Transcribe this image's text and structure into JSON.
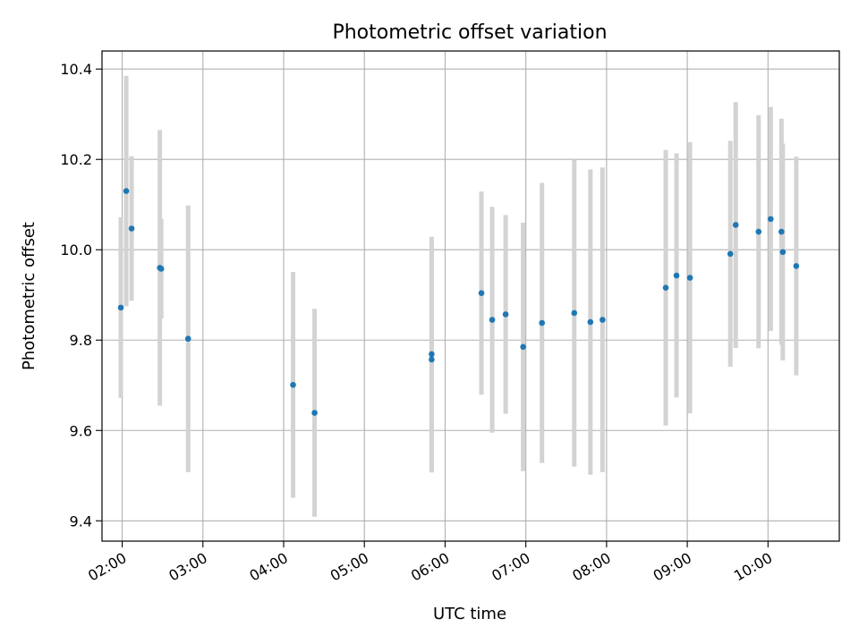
{
  "chart_data": {
    "type": "scatter",
    "title": "Photometric offset variation",
    "xlabel": "UTC time",
    "ylabel": "Photometric offset",
    "x_ticks": [
      "02:00",
      "03:00",
      "04:00",
      "05:00",
      "06:00",
      "07:00",
      "08:00",
      "09:00",
      "10:00"
    ],
    "y_ticks": [
      "9.4",
      "9.6",
      "9.8",
      "10.0",
      "10.2",
      "10.4"
    ],
    "xlim": [
      "01:45",
      "10:53"
    ],
    "ylim": [
      9.355,
      10.44
    ],
    "grid": true,
    "colors": {
      "point": "#1f77b4",
      "errorbar": "#d3d3d3",
      "grid": "#b0b0b0"
    },
    "points": [
      {
        "x": "01:59",
        "y": 9.872,
        "err": 0.2
      },
      {
        "x": "02:03",
        "y": 10.13,
        "err": 0.255
      },
      {
        "x": "02:07",
        "y": 10.047,
        "err": 0.16
      },
      {
        "x": "02:28",
        "y": 9.96,
        "err": 0.305
      },
      {
        "x": "02:29",
        "y": 9.958,
        "err": 0.11
      },
      {
        "x": "02:49",
        "y": 9.803,
        "err": 0.295
      },
      {
        "x": "04:07",
        "y": 9.701,
        "err": 0.25
      },
      {
        "x": "04:23",
        "y": 9.639,
        "err": 0.23
      },
      {
        "x": "05:50",
        "y": 9.769,
        "err": 0.26
      },
      {
        "x": "05:50",
        "y": 9.757,
        "err": 0.25
      },
      {
        "x": "06:27",
        "y": 9.904,
        "err": 0.225
      },
      {
        "x": "06:35",
        "y": 9.845,
        "err": 0.25
      },
      {
        "x": "06:45",
        "y": 9.857,
        "err": 0.22
      },
      {
        "x": "06:58",
        "y": 9.785,
        "err": 0.275
      },
      {
        "x": "07:12",
        "y": 9.838,
        "err": 0.31
      },
      {
        "x": "07:36",
        "y": 9.86,
        "err": 0.34
      },
      {
        "x": "07:48",
        "y": 9.84,
        "err": 0.338
      },
      {
        "x": "07:57",
        "y": 9.845,
        "err": 0.337
      },
      {
        "x": "08:44",
        "y": 9.916,
        "err": 0.305
      },
      {
        "x": "08:52",
        "y": 9.943,
        "err": 0.27
      },
      {
        "x": "09:02",
        "y": 9.938,
        "err": 0.3
      },
      {
        "x": "09:32",
        "y": 9.991,
        "err": 0.25
      },
      {
        "x": "09:36",
        "y": 10.055,
        "err": 0.272
      },
      {
        "x": "09:53",
        "y": 10.04,
        "err": 0.258
      },
      {
        "x": "10:02",
        "y": 10.068,
        "err": 0.248
      },
      {
        "x": "10:10",
        "y": 10.04,
        "err": 0.25
      },
      {
        "x": "10:11",
        "y": 9.995,
        "err": 0.24
      },
      {
        "x": "10:21",
        "y": 9.964,
        "err": 0.242
      }
    ]
  }
}
